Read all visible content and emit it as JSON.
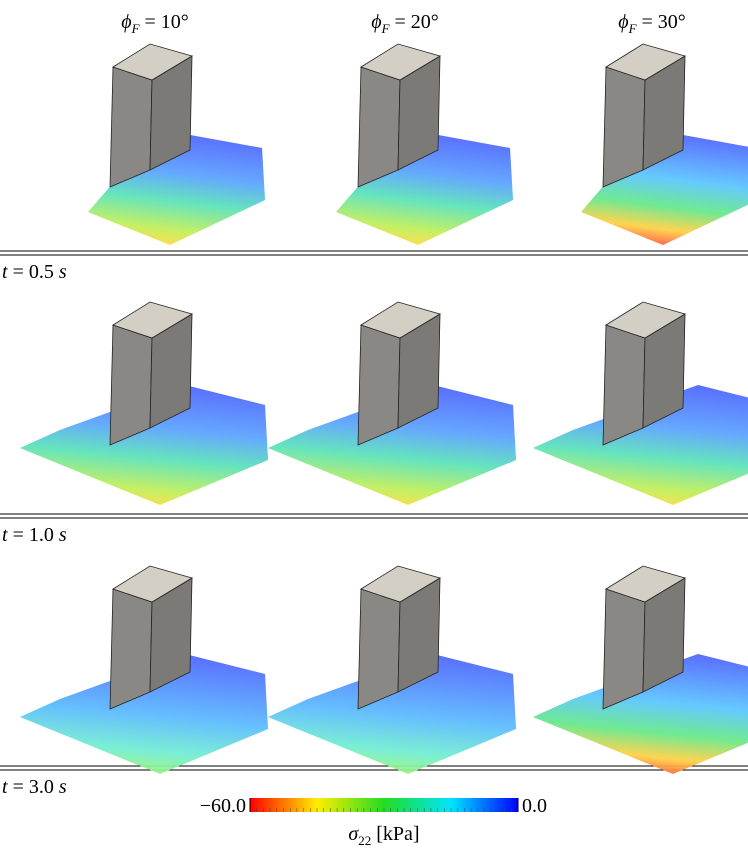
{
  "columns": [
    {
      "symbol": "ϕ",
      "sub": "F",
      "text": " = 10°"
    },
    {
      "symbol": "ϕ",
      "sub": "F",
      "text": " = 20°"
    },
    {
      "symbol": "ϕ",
      "sub": "F",
      "text": " = 30°"
    }
  ],
  "rows": [
    {
      "symbol": "t",
      "text": " = 0.5 ",
      "unit": "s"
    },
    {
      "symbol": "t",
      "text": " = 1.0 ",
      "unit": "s"
    },
    {
      "symbol": "t",
      "text": " = 3.0 ",
      "unit": "s"
    }
  ],
  "colorbar": {
    "min": {
      "value": -60,
      "label": "−60.0"
    },
    "max": {
      "value": 0,
      "label": "0.0"
    },
    "symbol": "σ",
    "sub": "22",
    "unit": " [kPa]"
  }
}
